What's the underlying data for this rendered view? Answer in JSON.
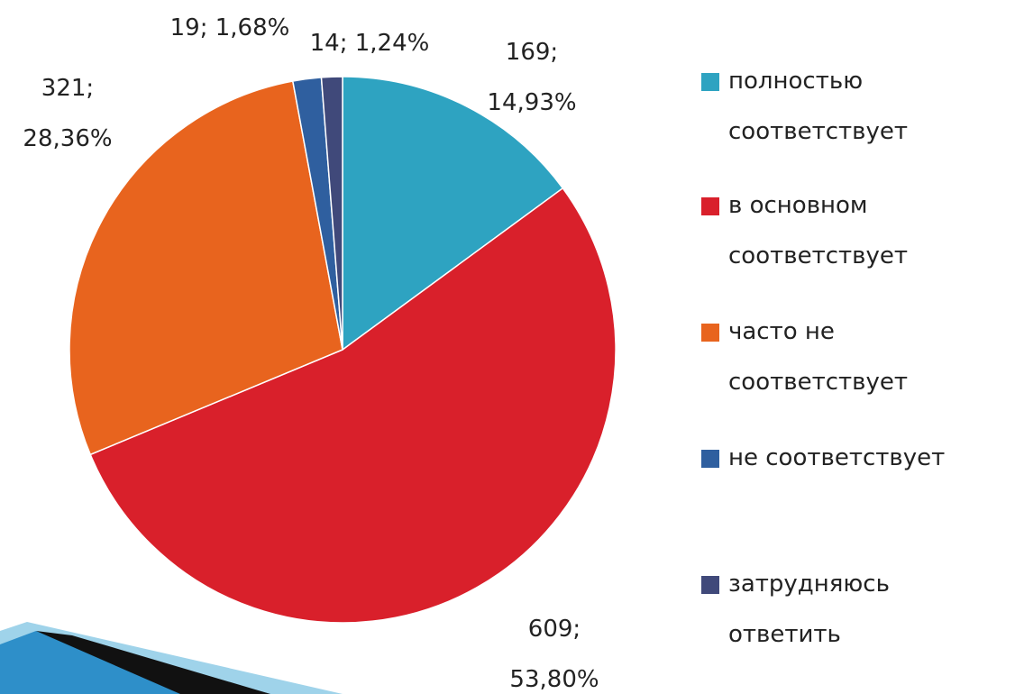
{
  "chart_data": {
    "type": "pie",
    "categories": [
      "полностью соответствует",
      "в основном соответствует",
      "часто не соответствует",
      "не соответствует",
      "затрудняюсь ответить"
    ],
    "values": [
      169,
      609,
      321,
      19,
      14
    ],
    "value_labels": [
      "169; 14,93%",
      "609; 53,80%",
      "321; 28,36%",
      "19; 1,68%",
      "14; 1,24%"
    ],
    "colors": [
      "#2ea3c1",
      "#d9202b",
      "#e8641e",
      "#2f5f9f",
      "#40497a"
    ],
    "legend": "right"
  }
}
